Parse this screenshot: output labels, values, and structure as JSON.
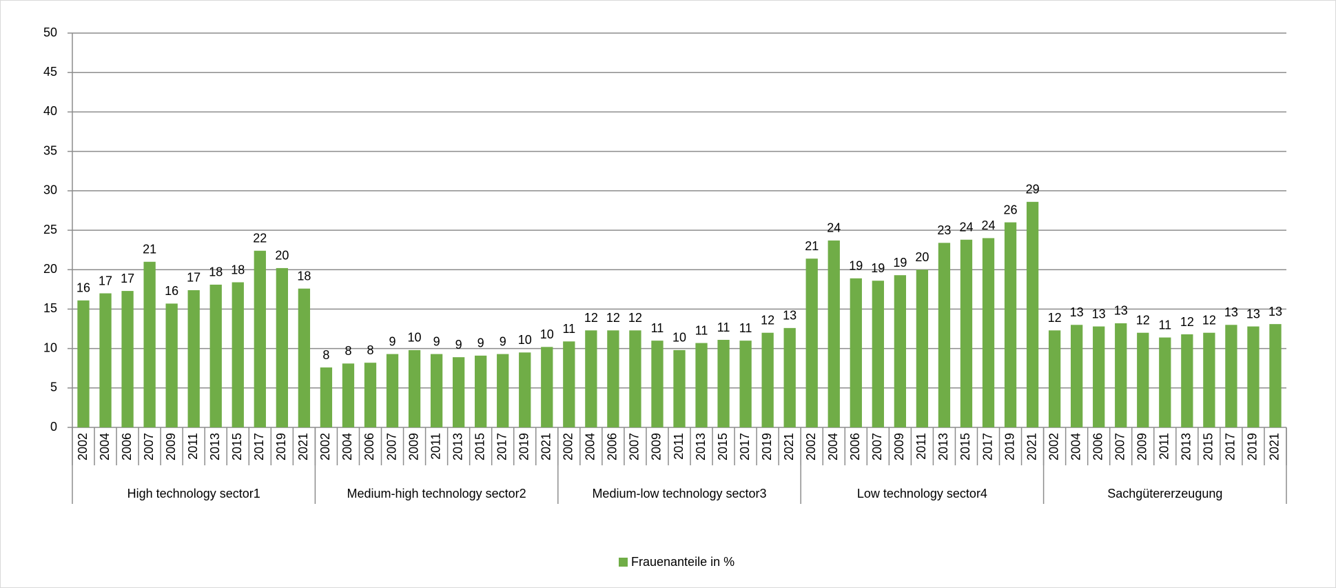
{
  "chart_data": {
    "type": "bar",
    "categories": [
      "2002",
      "2004",
      "2006",
      "2007",
      "2009",
      "2011",
      "2013",
      "2015",
      "2017",
      "2019",
      "2021",
      "2002",
      "2004",
      "2006",
      "2007",
      "2009",
      "2011",
      "2013",
      "2015",
      "2017",
      "2019",
      "2021",
      "2002",
      "2004",
      "2006",
      "2007",
      "2009",
      "2011",
      "2013",
      "2015",
      "2017",
      "2019",
      "2021",
      "2002",
      "2004",
      "2006",
      "2007",
      "2009",
      "2011",
      "2013",
      "2015",
      "2017",
      "2019",
      "2021",
      "2002",
      "2004",
      "2006",
      "2007",
      "2009",
      "2011",
      "2013",
      "2015",
      "2017",
      "2019",
      "2021"
    ],
    "group_labels": [
      "High technology sector1",
      "Medium-high technology sector2",
      "Medium-low technology sector3",
      "Low technology sector4",
      "Sachgütererzeugung"
    ],
    "series": [
      {
        "name": "Frauenanteile in %",
        "color": "#70ad47",
        "values": [
          16.1,
          17.0,
          17.3,
          21.0,
          15.7,
          17.4,
          18.1,
          18.4,
          22.4,
          20.2,
          17.6,
          7.6,
          8.1,
          8.2,
          9.3,
          9.8,
          9.3,
          8.9,
          9.1,
          9.3,
          9.5,
          10.2,
          10.9,
          12.3,
          12.3,
          12.3,
          11.0,
          9.8,
          10.7,
          11.1,
          11.0,
          12.0,
          12.6,
          21.4,
          23.7,
          18.9,
          18.6,
          19.3,
          20.0,
          23.4,
          23.8,
          24.0,
          26.0,
          28.6,
          12.3,
          13.0,
          12.8,
          13.2,
          12.0,
          11.4,
          11.8,
          12.0,
          13.0,
          12.8,
          13.1
        ],
        "value_labels": [
          "16",
          "17",
          "17",
          "21",
          "16",
          "17",
          "18",
          "18",
          "22",
          "20",
          "18",
          "8",
          "8",
          "8",
          "9",
          "10",
          "9",
          "9",
          "9",
          "9",
          "10",
          "10",
          "11",
          "12",
          "12",
          "12",
          "11",
          "10",
          "11",
          "11",
          "11",
          "12",
          "13",
          "21",
          "24",
          "19",
          "19",
          "19",
          "20",
          "23",
          "24",
          "24",
          "26",
          "29",
          "12",
          "13",
          "13",
          "13",
          "12",
          "11",
          "12",
          "12",
          "13",
          "13",
          "13"
        ]
      }
    ],
    "ylim": [
      0,
      50
    ],
    "yticks": [
      0,
      5,
      10,
      15,
      20,
      25,
      30,
      35,
      40,
      45,
      50
    ],
    "grid": true,
    "legend": "bottom"
  }
}
